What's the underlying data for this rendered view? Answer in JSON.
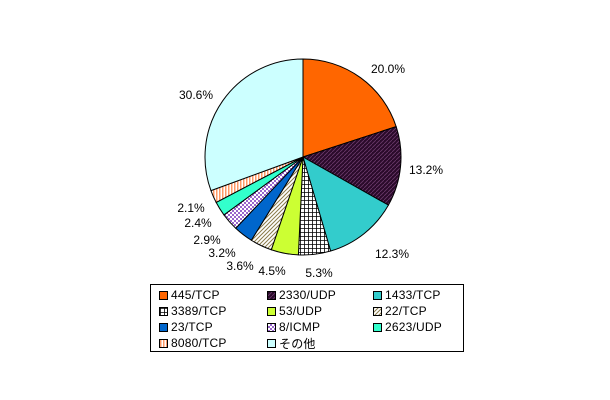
{
  "chart_data": {
    "type": "pie",
    "title": "",
    "legend_position": "bottom",
    "slices": [
      {
        "label": "445/TCP",
        "value": 20.0,
        "value_label": "20.0%",
        "color": "#ff6600",
        "pattern": "solid"
      },
      {
        "label": "2330/UDP",
        "value": 13.2,
        "value_label": "13.2%",
        "color": "#330033",
        "pattern": "hatch-dark"
      },
      {
        "label": "1433/TCP",
        "value": 12.3,
        "value_label": "12.3%",
        "color": "#33cccc",
        "pattern": "solid"
      },
      {
        "label": "3389/TCP",
        "value": 5.3,
        "value_label": "5.3%",
        "color": "#555555",
        "pattern": "grid"
      },
      {
        "label": "53/UDP",
        "value": 4.5,
        "value_label": "4.5%",
        "color": "#ccff33",
        "pattern": "solid"
      },
      {
        "label": "22/TCP",
        "value": 3.6,
        "value_label": "3.6%",
        "color": "#ffffff",
        "pattern": "diag-stripes"
      },
      {
        "label": "23/TCP",
        "value": 3.2,
        "value_label": "3.2%",
        "color": "#0066cc",
        "pattern": "solid"
      },
      {
        "label": "8/ICMP",
        "value": 2.9,
        "value_label": "2.9%",
        "color": "#9966cc",
        "pattern": "checker"
      },
      {
        "label": "2623/UDP",
        "value": 2.4,
        "value_label": "2.4%",
        "color": "#33ffcc",
        "pattern": "solid"
      },
      {
        "label": "8080/TCP",
        "value": 2.1,
        "value_label": "2.1%",
        "color": "#ff9966",
        "pattern": "vstripes"
      },
      {
        "label": "その他",
        "value": 30.6,
        "value_label": "30.6%",
        "color": "#ccffff",
        "pattern": "solid"
      }
    ]
  }
}
